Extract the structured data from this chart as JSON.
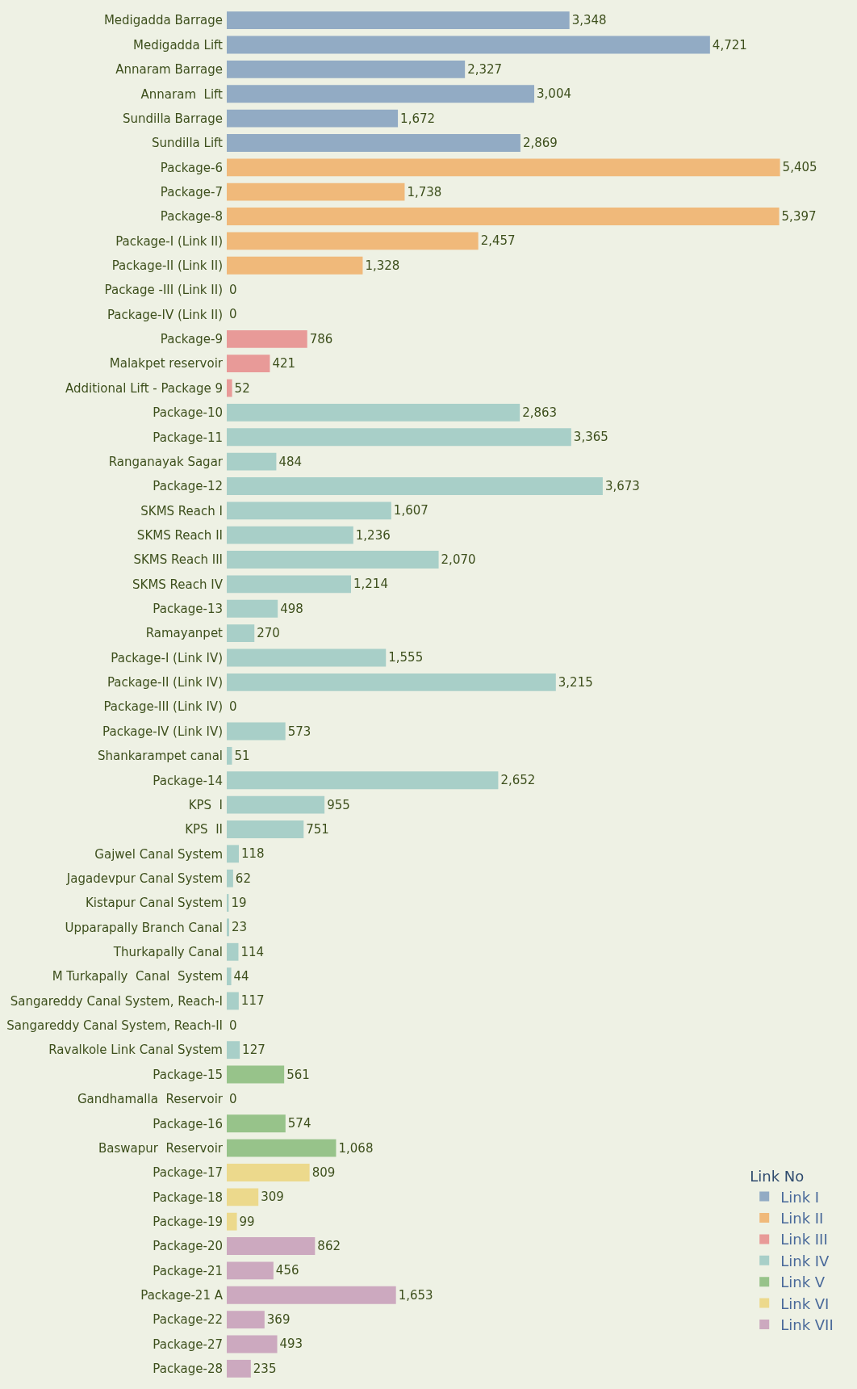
{
  "chart_data": {
    "type": "bar",
    "orientation": "horizontal",
    "legend": "bottom right",
    "legend_title": "Link No",
    "grid": false,
    "categories": [
      "Medigadda Barrage",
      "Medigadda Lift",
      "Annaram Barrage",
      "Annaram  Lift",
      "Sundilla Barrage",
      "Sundilla Lift",
      "Package-6",
      "Package-7",
      "Package-8",
      "Package-I (Link II)",
      "Package-II (Link II)",
      "Package -III (Link II)",
      "Package-IV (Link II)",
      "Package-9",
      "Malakpet reservoir",
      "Additional Lift - Package 9",
      "Package-10",
      "Package-11",
      "Ranganayak Sagar",
      "Package-12",
      "SKMS Reach I",
      "SKMS Reach II",
      "SKMS Reach III",
      "SKMS Reach IV",
      "Package-13",
      "Ramayanpet",
      "Package-I (Link IV)",
      "Package-II (Link IV)",
      "Package-III (Link IV)",
      "Package-IV (Link IV)",
      "Shankarampet canal",
      "Package-14",
      "KPS  I",
      "KPS  II",
      "Gajwel Canal System",
      "Jagadevpur Canal System",
      "Kistapur Canal System",
      "Upparapally Branch Canal",
      "Thurkapally Canal",
      "M Turkapally  Canal  System",
      "Sangareddy Canal System, Reach-I",
      "Sangareddy Canal System, Reach-II",
      "Ravalkole Link Canal System",
      "Package-15",
      "Gandhamalla  Reservoir",
      "Package-16",
      "Baswapur  Reservoir",
      "Package-17",
      "Package-18",
      "Package-19",
      "Package-20",
      "Package-21",
      "Package-21 A",
      "Package-22",
      "Package-27",
      "Package-28"
    ],
    "series": [
      {
        "name": "Link I",
        "color": "#92abc4",
        "values": [
          3348,
          4721,
          2327,
          3004,
          1672,
          2869,
          null,
          null,
          null,
          null,
          null,
          null,
          null,
          null,
          null,
          null,
          null,
          null,
          null,
          null,
          null,
          null,
          null,
          null,
          null,
          null,
          null,
          null,
          null,
          null,
          null,
          null,
          null,
          null,
          null,
          null,
          null,
          null,
          null,
          null,
          null,
          null,
          null,
          null,
          null,
          null,
          null,
          null,
          null,
          null,
          null,
          null,
          null,
          null,
          null,
          null
        ],
        "value_labels": [
          "3,348",
          "4,721",
          "2,327",
          "3,004",
          "1,672",
          "2,869",
          null,
          null,
          null,
          null,
          null,
          null,
          null,
          null,
          null,
          null,
          null,
          null,
          null,
          null,
          null,
          null,
          null,
          null,
          null,
          null,
          null,
          null,
          null,
          null,
          null,
          null,
          null,
          null,
          null,
          null,
          null,
          null,
          null,
          null,
          null,
          null,
          null,
          null,
          null,
          null,
          null,
          null,
          null,
          null,
          null,
          null,
          null,
          null,
          null,
          null
        ]
      },
      {
        "name": "Link II",
        "color": "#f0b97a",
        "values": [
          null,
          null,
          null,
          null,
          null,
          null,
          5405,
          1738,
          5397,
          2457,
          1328,
          0,
          0,
          null,
          null,
          null,
          null,
          null,
          null,
          null,
          null,
          null,
          null,
          null,
          null,
          null,
          null,
          null,
          null,
          null,
          null,
          null,
          null,
          null,
          null,
          null,
          null,
          null,
          null,
          null,
          null,
          null,
          null,
          null,
          null,
          null,
          null,
          null,
          null,
          null,
          null,
          null,
          null,
          null,
          null,
          null
        ],
        "value_labels": [
          null,
          null,
          null,
          null,
          null,
          null,
          "5,405",
          "1,738",
          "5,397",
          "2,457",
          "1,328",
          "0",
          "0",
          null,
          null,
          null,
          null,
          null,
          null,
          null,
          null,
          null,
          null,
          null,
          null,
          null,
          null,
          null,
          null,
          null,
          null,
          null,
          null,
          null,
          null,
          null,
          null,
          null,
          null,
          null,
          null,
          null,
          null,
          null,
          null,
          null,
          null,
          null,
          null,
          null,
          null,
          null,
          null,
          null,
          null,
          null
        ]
      },
      {
        "name": "Link III",
        "color": "#e89a98",
        "values": [
          null,
          null,
          null,
          null,
          null,
          null,
          null,
          null,
          null,
          null,
          null,
          null,
          null,
          786,
          421,
          52,
          null,
          null,
          null,
          null,
          null,
          null,
          null,
          null,
          null,
          null,
          null,
          null,
          null,
          null,
          null,
          null,
          null,
          null,
          null,
          null,
          null,
          null,
          null,
          null,
          null,
          null,
          null,
          null,
          null,
          null,
          null,
          null,
          null,
          null,
          null,
          null,
          null,
          null,
          null,
          null
        ],
        "value_labels": [
          null,
          null,
          null,
          null,
          null,
          null,
          null,
          null,
          null,
          null,
          null,
          null,
          null,
          "786",
          "421",
          "52",
          null,
          null,
          null,
          null,
          null,
          null,
          null,
          null,
          null,
          null,
          null,
          null,
          null,
          null,
          null,
          null,
          null,
          null,
          null,
          null,
          null,
          null,
          null,
          null,
          null,
          null,
          null,
          null,
          null,
          null,
          null,
          null,
          null,
          null,
          null,
          null,
          null,
          null,
          null,
          null
        ]
      },
      {
        "name": "Link IV",
        "color": "#a8cfc8",
        "values": [
          null,
          null,
          null,
          null,
          null,
          null,
          null,
          null,
          null,
          null,
          null,
          null,
          null,
          null,
          null,
          null,
          2863,
          3365,
          484,
          3673,
          1607,
          1236,
          2070,
          1214,
          498,
          270,
          1555,
          3215,
          0,
          573,
          51,
          2652,
          955,
          751,
          118,
          62,
          19,
          23,
          114,
          44,
          117,
          0,
          127,
          null,
          null,
          null,
          null,
          null,
          null,
          null,
          null,
          null,
          null,
          null,
          null,
          null
        ],
        "value_labels": [
          null,
          null,
          null,
          null,
          null,
          null,
          null,
          null,
          null,
          null,
          null,
          null,
          null,
          null,
          null,
          null,
          "2,863",
          "3,365",
          "484",
          "3,673",
          "1,607",
          "1,236",
          "2,070",
          "1,214",
          "498",
          "270",
          "1,555",
          "3,215",
          "0",
          "573",
          "51",
          "2,652",
          "955",
          "751",
          "118",
          "62",
          "19",
          "23",
          "114",
          "44",
          "117",
          "0",
          "127",
          null,
          null,
          null,
          null,
          null,
          null,
          null,
          null,
          null,
          null,
          null,
          null,
          null
        ]
      },
      {
        "name": "Link V",
        "color": "#97c38a",
        "values": [
          null,
          null,
          null,
          null,
          null,
          null,
          null,
          null,
          null,
          null,
          null,
          null,
          null,
          null,
          null,
          null,
          null,
          null,
          null,
          null,
          null,
          null,
          null,
          null,
          null,
          null,
          null,
          null,
          null,
          null,
          null,
          null,
          null,
          null,
          null,
          null,
          null,
          null,
          null,
          null,
          null,
          null,
          null,
          561,
          0,
          574,
          1068,
          null,
          null,
          null,
          null,
          null,
          null,
          null,
          null,
          null
        ],
        "value_labels": [
          null,
          null,
          null,
          null,
          null,
          null,
          null,
          null,
          null,
          null,
          null,
          null,
          null,
          null,
          null,
          null,
          null,
          null,
          null,
          null,
          null,
          null,
          null,
          null,
          null,
          null,
          null,
          null,
          null,
          null,
          null,
          null,
          null,
          null,
          null,
          null,
          null,
          null,
          null,
          null,
          null,
          null,
          null,
          "561",
          "0",
          "574",
          "1,068",
          null,
          null,
          null,
          null,
          null,
          null,
          null,
          null,
          null
        ]
      },
      {
        "name": "Link VI",
        "color": "#ecd98c",
        "values": [
          null,
          null,
          null,
          null,
          null,
          null,
          null,
          null,
          null,
          null,
          null,
          null,
          null,
          null,
          null,
          null,
          null,
          null,
          null,
          null,
          null,
          null,
          null,
          null,
          null,
          null,
          null,
          null,
          null,
          null,
          null,
          null,
          null,
          null,
          null,
          null,
          null,
          null,
          null,
          null,
          null,
          null,
          null,
          null,
          null,
          null,
          null,
          809,
          309,
          99,
          null,
          null,
          null,
          null,
          null,
          null
        ],
        "value_labels": [
          null,
          null,
          null,
          null,
          null,
          null,
          null,
          null,
          null,
          null,
          null,
          null,
          null,
          null,
          null,
          null,
          null,
          null,
          null,
          null,
          null,
          null,
          null,
          null,
          null,
          null,
          null,
          null,
          null,
          null,
          null,
          null,
          null,
          null,
          null,
          null,
          null,
          null,
          null,
          null,
          null,
          null,
          null,
          null,
          null,
          null,
          null,
          "809",
          "309",
          "99",
          null,
          null,
          null,
          null,
          null,
          null
        ]
      },
      {
        "name": "Link VII",
        "color": "#cca9bf",
        "values": [
          null,
          null,
          null,
          null,
          null,
          null,
          null,
          null,
          null,
          null,
          null,
          null,
          null,
          null,
          null,
          null,
          null,
          null,
          null,
          null,
          null,
          null,
          null,
          null,
          null,
          null,
          null,
          null,
          null,
          null,
          null,
          null,
          null,
          null,
          null,
          null,
          null,
          null,
          null,
          null,
          null,
          null,
          null,
          null,
          null,
          null,
          null,
          null,
          null,
          null,
          862,
          456,
          1653,
          369,
          493,
          235
        ],
        "value_labels": [
          null,
          null,
          null,
          null,
          null,
          null,
          null,
          null,
          null,
          null,
          null,
          null,
          null,
          null,
          null,
          null,
          null,
          null,
          null,
          null,
          null,
          null,
          null,
          null,
          null,
          null,
          null,
          null,
          null,
          null,
          null,
          null,
          null,
          null,
          null,
          null,
          null,
          null,
          null,
          null,
          null,
          null,
          null,
          null,
          null,
          null,
          null,
          null,
          null,
          null,
          "862",
          "456",
          "1,653",
          "369",
          "493",
          "235"
        ]
      }
    ]
  }
}
